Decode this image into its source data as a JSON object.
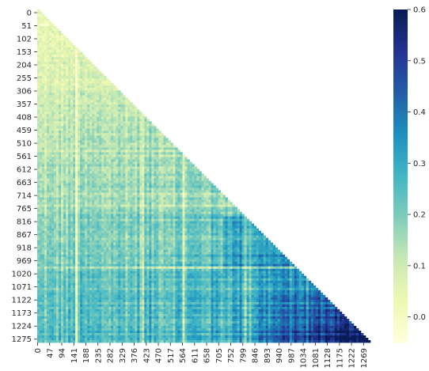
{
  "chart_data": {
    "type": "heatmap",
    "variant": "lower-triangular correlation matrix",
    "n": 1300,
    "title": "",
    "xlabel": "",
    "ylabel": "",
    "y_tick_labels": [
      "0",
      "51",
      "102",
      "153",
      "204",
      "255",
      "306",
      "357",
      "408",
      "459",
      "510",
      "561",
      "612",
      "663",
      "714",
      "765",
      "816",
      "867",
      "918",
      "969",
      "1020",
      "1071",
      "1122",
      "1173",
      "1224",
      "1275"
    ],
    "x_tick_labels": [
      "0",
      "47",
      "94",
      "141",
      "188",
      "235",
      "282",
      "329",
      "376",
      "423",
      "470",
      "517",
      "564",
      "611",
      "658",
      "705",
      "752",
      "799",
      "846",
      "893",
      "940",
      "987",
      "1034",
      "1081",
      "1128",
      "1175",
      "1222",
      "1269"
    ],
    "colorbar": {
      "colormap": "YlGnBu",
      "vmin": -0.05,
      "vmax": 0.6,
      "ticks": [
        "0.0",
        "0.1",
        "0.2",
        "0.3",
        "0.4",
        "0.5",
        "0.6"
      ]
    },
    "approx_values": {
      "upper_rows_mean": 0.05,
      "middle_rows_mean": 0.15,
      "lower_right_max": 0.6
    }
  }
}
